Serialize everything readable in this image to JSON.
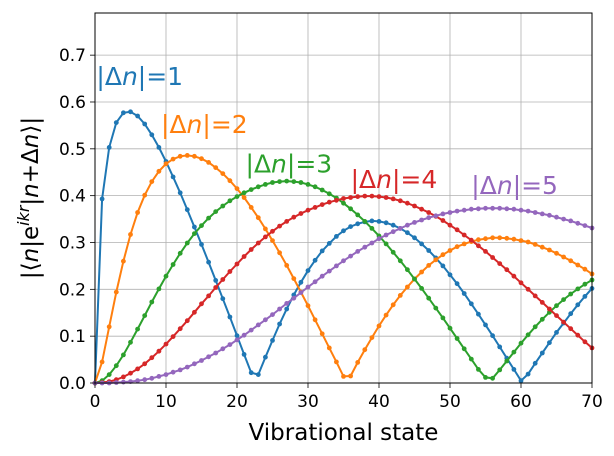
{
  "chart_data": {
    "type": "line",
    "title": "",
    "xlabel": "Vibrational state",
    "ylabel": "|⟨n|e^{ikr}|n+Δn⟩|",
    "xlim": [
      0,
      70
    ],
    "ylim": [
      0,
      0.79
    ],
    "x_ticks": [
      "0",
      "10",
      "20",
      "30",
      "40",
      "50",
      "60",
      "70"
    ],
    "y_ticks": [
      "0.0",
      "0.1",
      "0.2",
      "0.3",
      "0.4",
      "0.5",
      "0.6",
      "0.7"
    ],
    "grid": true,
    "legend": "none",
    "annotations": [
      {
        "text": "|Δn|=1",
        "x": 0.2,
        "y": 0.655,
        "color": "#1f77b4"
      },
      {
        "text": "|Δn|=2",
        "x": 9.3,
        "y": 0.553,
        "color": "#ff7f0e"
      },
      {
        "text": "|Δn|=3",
        "x": 21.2,
        "y": 0.469,
        "color": "#2ca02c"
      },
      {
        "text": "|Δn|=4",
        "x": 36.0,
        "y": 0.436,
        "color": "#d62728"
      },
      {
        "text": "|Δn|=5",
        "x": 53.0,
        "y": 0.423,
        "color": "#9467bd"
      }
    ],
    "series": [
      {
        "color": "#1f77b4",
        "x": [
          0,
          1,
          2,
          3,
          4,
          5,
          6,
          7,
          8,
          9,
          10,
          11,
          12,
          13,
          14,
          15,
          16,
          17,
          18,
          19,
          20,
          21,
          22,
          23,
          24,
          25,
          26,
          27,
          28,
          29,
          30,
          31,
          32,
          33,
          34,
          35,
          36,
          37,
          38,
          39,
          40,
          41,
          42,
          43,
          44,
          45,
          46,
          47,
          48,
          49,
          50,
          51,
          52,
          53,
          54,
          55,
          56,
          57,
          58,
          59,
          60,
          61,
          62,
          63,
          64,
          65,
          66,
          67,
          68,
          69,
          70
        ],
        "y": [
          0.0,
          0.393,
          0.503,
          0.556,
          0.577,
          0.579,
          0.57,
          0.553,
          0.53,
          0.503,
          0.473,
          0.44,
          0.406,
          0.37,
          0.333,
          0.296,
          0.258,
          0.219,
          0.18,
          0.141,
          0.101,
          0.061,
          0.022,
          0.018,
          0.055,
          0.091,
          0.126,
          0.158,
          0.188,
          0.215,
          0.24,
          0.262,
          0.282,
          0.298,
          0.313,
          0.325,
          0.334,
          0.34,
          0.344,
          0.346,
          0.345,
          0.342,
          0.337,
          0.33,
          0.321,
          0.31,
          0.297,
          0.283,
          0.267,
          0.25,
          0.231,
          0.212,
          0.191,
          0.169,
          0.147,
          0.124,
          0.101,
          0.077,
          0.053,
          0.029,
          0.005,
          0.019,
          0.042,
          0.064,
          0.086,
          0.108,
          0.128,
          0.148,
          0.167,
          0.185,
          0.202
        ]
      },
      {
        "color": "#ff7f0e",
        "x": [
          0,
          1,
          2,
          3,
          4,
          5,
          6,
          7,
          8,
          9,
          10,
          11,
          12,
          13,
          14,
          15,
          16,
          17,
          18,
          19,
          20,
          21,
          22,
          23,
          24,
          25,
          26,
          27,
          28,
          29,
          30,
          31,
          32,
          33,
          34,
          35,
          36,
          37,
          38,
          39,
          40,
          41,
          42,
          43,
          44,
          45,
          46,
          47,
          48,
          49,
          50,
          51,
          52,
          53,
          54,
          55,
          56,
          57,
          58,
          59,
          60,
          61,
          62,
          63,
          64,
          65,
          66,
          67,
          68,
          69,
          70
        ],
        "y": [
          0.0,
          0.045,
          0.12,
          0.194,
          0.26,
          0.317,
          0.364,
          0.401,
          0.43,
          0.452,
          0.468,
          0.478,
          0.484,
          0.486,
          0.484,
          0.479,
          0.471,
          0.46,
          0.447,
          0.432,
          0.415,
          0.396,
          0.375,
          0.353,
          0.329,
          0.304,
          0.278,
          0.251,
          0.223,
          0.194,
          0.165,
          0.135,
          0.105,
          0.075,
          0.045,
          0.014,
          0.015,
          0.044,
          0.071,
          0.097,
          0.122,
          0.145,
          0.167,
          0.187,
          0.205,
          0.222,
          0.237,
          0.251,
          0.263,
          0.274,
          0.283,
          0.291,
          0.297,
          0.302,
          0.306,
          0.308,
          0.31,
          0.31,
          0.309,
          0.307,
          0.304,
          0.301,
          0.296,
          0.29,
          0.284,
          0.277,
          0.269,
          0.261,
          0.252,
          0.243,
          0.233
        ]
      },
      {
        "color": "#2ca02c",
        "x": [
          0,
          1,
          2,
          3,
          4,
          5,
          6,
          7,
          8,
          9,
          10,
          11,
          12,
          13,
          14,
          15,
          16,
          17,
          18,
          19,
          20,
          21,
          22,
          23,
          24,
          25,
          26,
          27,
          28,
          29,
          30,
          31,
          32,
          33,
          34,
          35,
          36,
          37,
          38,
          39,
          40,
          41,
          42,
          43,
          44,
          45,
          46,
          47,
          48,
          49,
          50,
          51,
          52,
          53,
          54,
          55,
          56,
          57,
          58,
          59,
          60,
          61,
          62,
          63,
          64,
          65,
          66,
          67,
          68,
          69,
          70
        ],
        "y": [
          0.0,
          0.005,
          0.018,
          0.037,
          0.06,
          0.087,
          0.115,
          0.144,
          0.173,
          0.201,
          0.228,
          0.253,
          0.277,
          0.299,
          0.319,
          0.336,
          0.352,
          0.366,
          0.378,
          0.389,
          0.398,
          0.406,
          0.413,
          0.419,
          0.424,
          0.428,
          0.43,
          0.431,
          0.43,
          0.428,
          0.424,
          0.419,
          0.412,
          0.404,
          0.395,
          0.384,
          0.372,
          0.359,
          0.345,
          0.33,
          0.314,
          0.297,
          0.279,
          0.261,
          0.242,
          0.222,
          0.202,
          0.181,
          0.16,
          0.139,
          0.117,
          0.095,
          0.073,
          0.051,
          0.029,
          0.012,
          0.01,
          0.028,
          0.047,
          0.066,
          0.085,
          0.103,
          0.12,
          0.136,
          0.151,
          0.165,
          0.178,
          0.19,
          0.201,
          0.211,
          0.22
        ]
      },
      {
        "color": "#d62728",
        "x": [
          0,
          1,
          2,
          3,
          4,
          5,
          6,
          7,
          8,
          9,
          10,
          11,
          12,
          13,
          14,
          15,
          16,
          17,
          18,
          19,
          20,
          21,
          22,
          23,
          24,
          25,
          26,
          27,
          28,
          29,
          30,
          31,
          32,
          33,
          34,
          35,
          36,
          37,
          38,
          39,
          40,
          41,
          42,
          43,
          44,
          45,
          46,
          47,
          48,
          49,
          50,
          51,
          52,
          53,
          54,
          55,
          56,
          57,
          58,
          59,
          60,
          61,
          62,
          63,
          64,
          65,
          66,
          67,
          68,
          69,
          70
        ],
        "y": [
          0.0,
          0.001,
          0.003,
          0.007,
          0.013,
          0.021,
          0.03,
          0.041,
          0.054,
          0.068,
          0.083,
          0.099,
          0.116,
          0.133,
          0.151,
          0.169,
          0.186,
          0.204,
          0.221,
          0.238,
          0.254,
          0.27,
          0.285,
          0.299,
          0.312,
          0.324,
          0.335,
          0.345,
          0.354,
          0.362,
          0.369,
          0.375,
          0.381,
          0.386,
          0.39,
          0.394,
          0.396,
          0.398,
          0.399,
          0.399,
          0.398,
          0.396,
          0.393,
          0.389,
          0.384,
          0.378,
          0.371,
          0.364,
          0.356,
          0.347,
          0.337,
          0.327,
          0.316,
          0.305,
          0.293,
          0.281,
          0.268,
          0.255,
          0.242,
          0.228,
          0.214,
          0.2,
          0.186,
          0.172,
          0.158,
          0.144,
          0.13,
          0.116,
          0.102,
          0.088,
          0.075
        ]
      },
      {
        "color": "#9467bd",
        "x": [
          0,
          1,
          2,
          3,
          4,
          5,
          6,
          7,
          8,
          9,
          10,
          11,
          12,
          13,
          14,
          15,
          16,
          17,
          18,
          19,
          20,
          21,
          22,
          23,
          24,
          25,
          26,
          27,
          28,
          29,
          30,
          31,
          32,
          33,
          34,
          35,
          36,
          37,
          38,
          39,
          40,
          41,
          42,
          43,
          44,
          45,
          46,
          47,
          48,
          49,
          50,
          51,
          52,
          53,
          54,
          55,
          56,
          57,
          58,
          59,
          60,
          61,
          62,
          63,
          64,
          65,
          66,
          67,
          68,
          69,
          70
        ],
        "y": [
          0.0,
          0.0,
          0.0,
          0.001,
          0.002,
          0.003,
          0.005,
          0.007,
          0.01,
          0.014,
          0.018,
          0.023,
          0.028,
          0.034,
          0.041,
          0.048,
          0.056,
          0.064,
          0.073,
          0.082,
          0.092,
          0.102,
          0.113,
          0.124,
          0.135,
          0.146,
          0.158,
          0.17,
          0.181,
          0.193,
          0.205,
          0.216,
          0.228,
          0.239,
          0.25,
          0.261,
          0.271,
          0.281,
          0.29,
          0.299,
          0.308,
          0.316,
          0.323,
          0.33,
          0.337,
          0.343,
          0.348,
          0.353,
          0.357,
          0.361,
          0.364,
          0.367,
          0.369,
          0.371,
          0.372,
          0.373,
          0.373,
          0.373,
          0.372,
          0.371,
          0.369,
          0.367,
          0.364,
          0.361,
          0.358,
          0.354,
          0.35,
          0.346,
          0.341,
          0.336,
          0.331
        ]
      }
    ]
  }
}
